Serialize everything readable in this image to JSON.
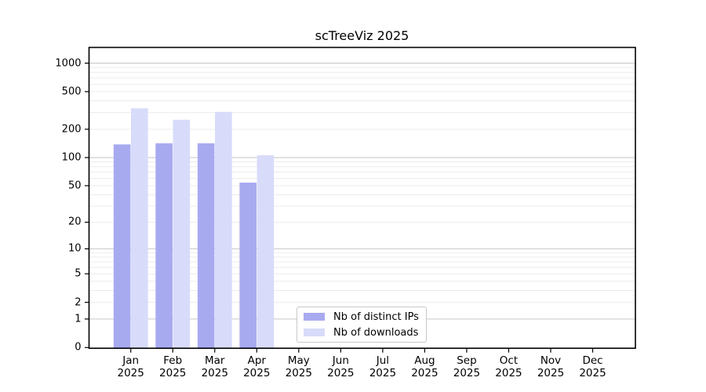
{
  "chart_data": {
    "type": "bar",
    "title": "scTreeViz 2025",
    "categories": [
      "Jan",
      "Feb",
      "Mar",
      "Apr",
      "May",
      "Jun",
      "Jul",
      "Aug",
      "Sep",
      "Oct",
      "Nov",
      "Dec"
    ],
    "year_label": "2025",
    "series": [
      {
        "name": "Nb of distinct IPs",
        "color": "#a8aaf0",
        "values": [
          138,
          142,
          142,
          54,
          null,
          null,
          null,
          null,
          null,
          null,
          null,
          null
        ]
      },
      {
        "name": "Nb of downloads",
        "color": "#d8dbf9",
        "values": [
          333,
          252,
          305,
          106,
          null,
          null,
          null,
          null,
          null,
          null,
          null,
          null
        ]
      }
    ],
    "yticks": [
      0,
      1,
      2,
      5,
      10,
      20,
      50,
      100,
      200,
      500,
      1000
    ],
    "scale": "log1p",
    "ylim": [
      0,
      1200
    ],
    "grid": "horizontal",
    "legend_position": "inside-bottom-center",
    "colors": {
      "major_gridline": "#c6c6c6",
      "minor_gridline": "#ececec",
      "axis": "#000000",
      "background": "#ffffff"
    }
  },
  "legend": {
    "items": [
      {
        "label": "Nb of distinct IPs"
      },
      {
        "label": "Nb of downloads"
      }
    ]
  }
}
